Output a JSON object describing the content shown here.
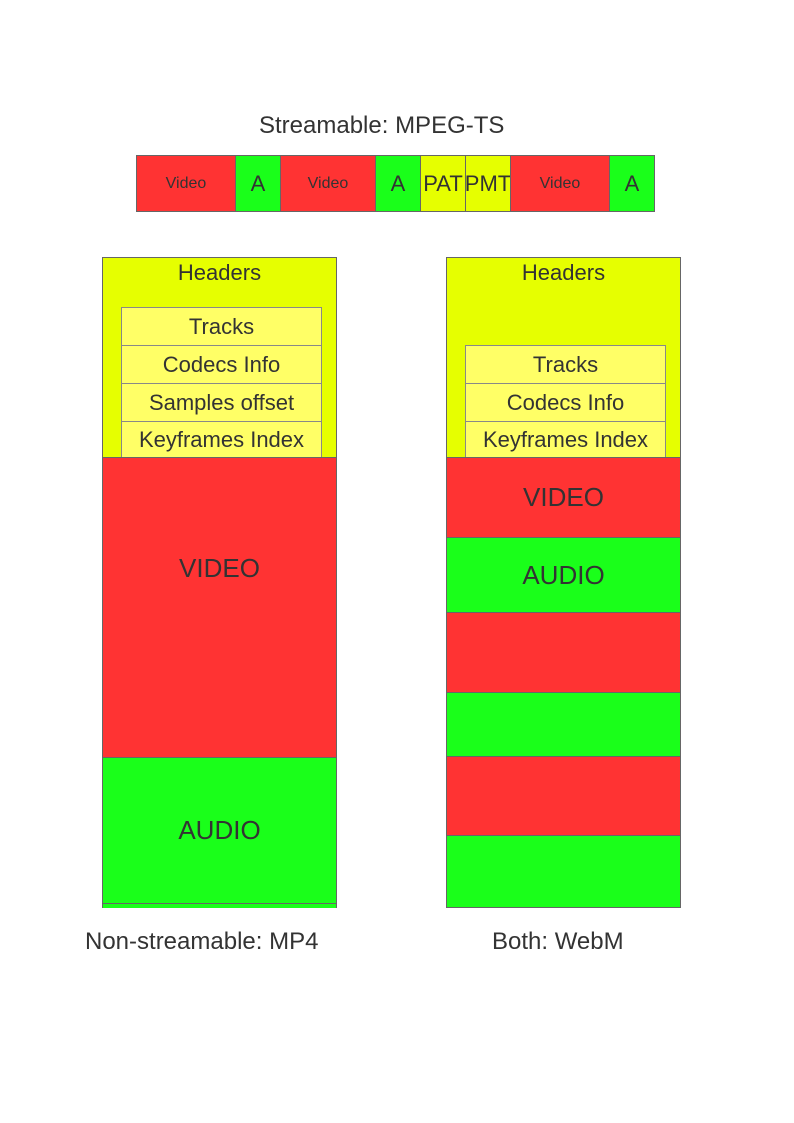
{
  "stream_title": "Streamable: MPEG-TS",
  "stream_cells": [
    "Video",
    "A",
    "Video",
    "A",
    "PAT",
    "PMT",
    "Video",
    "A"
  ],
  "mp4": {
    "headers": "Headers",
    "inner": [
      "Tracks",
      "Codecs Info",
      "Samples offset",
      "Keyframes Index"
    ],
    "video": "VIDEO",
    "audio": "AUDIO",
    "caption": "Non-streamable: MP4"
  },
  "webm": {
    "headers": "Headers",
    "inner": [
      "Tracks",
      "Codecs Info",
      "Keyframes Index"
    ],
    "video": "VIDEO",
    "audio": "AUDIO",
    "caption": "Both: WebM"
  },
  "colors": {
    "video": "#ff3333",
    "audio": "#1aff1a",
    "header": "#e6ff00",
    "inner": "#ffff66"
  }
}
